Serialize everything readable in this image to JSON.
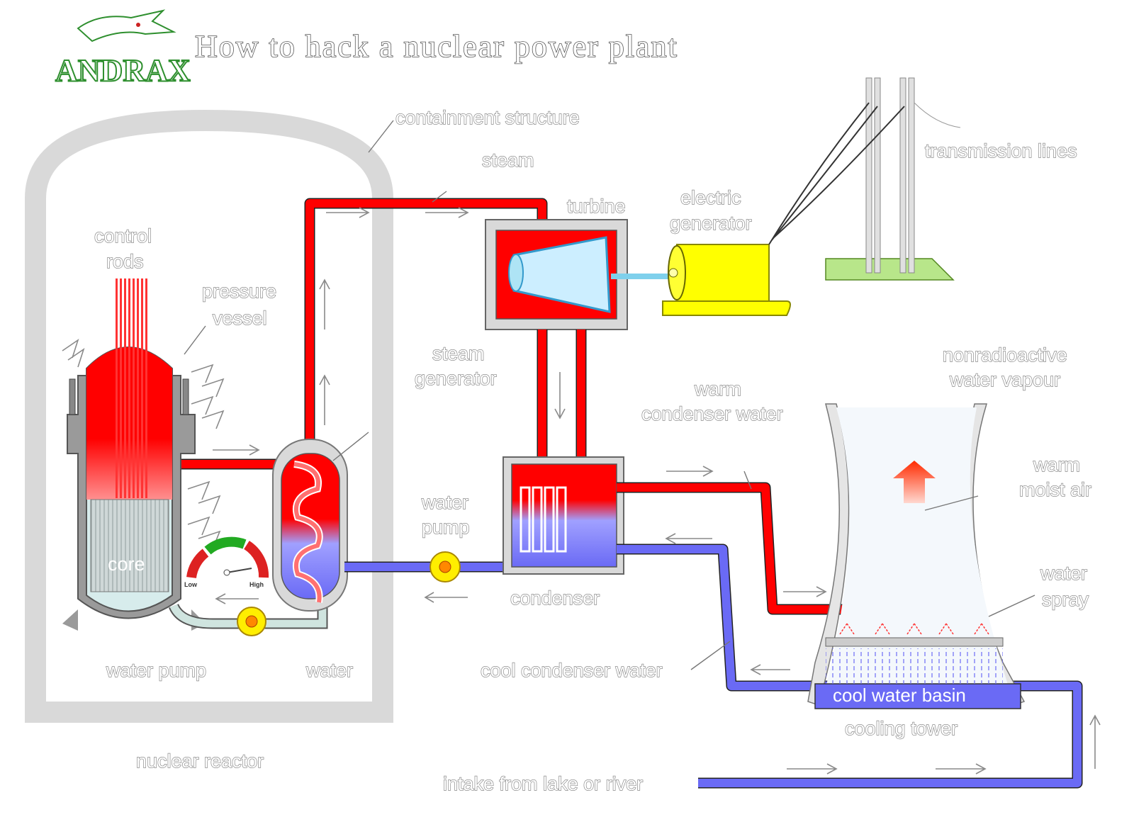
{
  "logo": {
    "text": "ANDRAX"
  },
  "title": "How to hack a nuclear power plant",
  "labels": {
    "containment_structure": "containment structure",
    "steam": "steam",
    "turbine": "turbine",
    "electric_generator_1": "electric",
    "electric_generator_2": "generator",
    "transmission_lines": "transmission lines",
    "control_rods_1": "control",
    "control_rods_2": "rods",
    "pressure_vessel_1": "pressure",
    "pressure_vessel_2": "vessel",
    "steam_generator_1": "steam",
    "steam_generator_2": "generator",
    "nonradioactive_1": "nonradioactive",
    "nonradioactive_2": "water vapour",
    "warm_condenser_1": "warm",
    "warm_condenser_2": "condenser water",
    "warm_moist_1": "warm",
    "warm_moist_2": "moist air",
    "water_pump_sec_1": "water",
    "water_pump_sec_2": "pump",
    "core": "core",
    "gauge_low": "Low",
    "gauge_high": "High",
    "condenser": "condenser",
    "water_spray_1": "water",
    "water_spray_2": "spray",
    "water_pump": "water pump",
    "water": "water",
    "cool_condenser_water": "cool condenser water",
    "cool_water_basin": "cool water basin",
    "cooling_tower": "cooling tower",
    "nuclear_reactor": "nuclear reactor",
    "intake": "intake from lake or river"
  },
  "colors": {
    "hot": "#ff0000",
    "cold": "#6a6af5",
    "shell": "#d9d9d9",
    "generator": "#ffff00",
    "ground": "#b8e68a",
    "logo_green": "#2e8f2e"
  }
}
